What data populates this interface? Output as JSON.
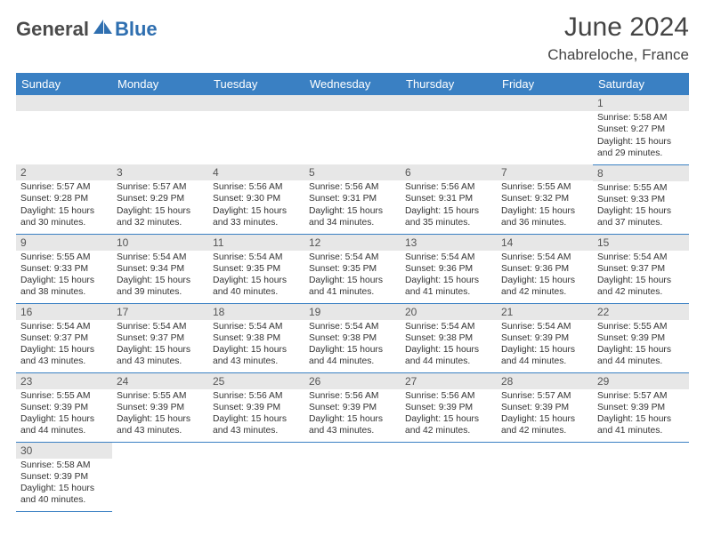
{
  "logo": {
    "general": "General",
    "blue": "Blue"
  },
  "title": "June 2024",
  "location": "Chabreloche, France",
  "colors": {
    "header_bg": "#3a80c3",
    "header_text": "#ffffff",
    "daybar_bg": "#e7e7e7",
    "border": "#3a80c3",
    "logo_blue": "#2f6fb0",
    "logo_gray": "#4a4a4a"
  },
  "weekdays": [
    "Sunday",
    "Monday",
    "Tuesday",
    "Wednesday",
    "Thursday",
    "Friday",
    "Saturday"
  ],
  "weeks": [
    [
      null,
      null,
      null,
      null,
      null,
      null,
      {
        "n": "1",
        "sr": "5:58 AM",
        "ss": "9:27 PM",
        "dl": "15 hours and 29 minutes."
      }
    ],
    [
      {
        "n": "2",
        "sr": "5:57 AM",
        "ss": "9:28 PM",
        "dl": "15 hours and 30 minutes."
      },
      {
        "n": "3",
        "sr": "5:57 AM",
        "ss": "9:29 PM",
        "dl": "15 hours and 32 minutes."
      },
      {
        "n": "4",
        "sr": "5:56 AM",
        "ss": "9:30 PM",
        "dl": "15 hours and 33 minutes."
      },
      {
        "n": "5",
        "sr": "5:56 AM",
        "ss": "9:31 PM",
        "dl": "15 hours and 34 minutes."
      },
      {
        "n": "6",
        "sr": "5:56 AM",
        "ss": "9:31 PM",
        "dl": "15 hours and 35 minutes."
      },
      {
        "n": "7",
        "sr": "5:55 AM",
        "ss": "9:32 PM",
        "dl": "15 hours and 36 minutes."
      },
      {
        "n": "8",
        "sr": "5:55 AM",
        "ss": "9:33 PM",
        "dl": "15 hours and 37 minutes."
      }
    ],
    [
      {
        "n": "9",
        "sr": "5:55 AM",
        "ss": "9:33 PM",
        "dl": "15 hours and 38 minutes."
      },
      {
        "n": "10",
        "sr": "5:54 AM",
        "ss": "9:34 PM",
        "dl": "15 hours and 39 minutes."
      },
      {
        "n": "11",
        "sr": "5:54 AM",
        "ss": "9:35 PM",
        "dl": "15 hours and 40 minutes."
      },
      {
        "n": "12",
        "sr": "5:54 AM",
        "ss": "9:35 PM",
        "dl": "15 hours and 41 minutes."
      },
      {
        "n": "13",
        "sr": "5:54 AM",
        "ss": "9:36 PM",
        "dl": "15 hours and 41 minutes."
      },
      {
        "n": "14",
        "sr": "5:54 AM",
        "ss": "9:36 PM",
        "dl": "15 hours and 42 minutes."
      },
      {
        "n": "15",
        "sr": "5:54 AM",
        "ss": "9:37 PM",
        "dl": "15 hours and 42 minutes."
      }
    ],
    [
      {
        "n": "16",
        "sr": "5:54 AM",
        "ss": "9:37 PM",
        "dl": "15 hours and 43 minutes."
      },
      {
        "n": "17",
        "sr": "5:54 AM",
        "ss": "9:37 PM",
        "dl": "15 hours and 43 minutes."
      },
      {
        "n": "18",
        "sr": "5:54 AM",
        "ss": "9:38 PM",
        "dl": "15 hours and 43 minutes."
      },
      {
        "n": "19",
        "sr": "5:54 AM",
        "ss": "9:38 PM",
        "dl": "15 hours and 44 minutes."
      },
      {
        "n": "20",
        "sr": "5:54 AM",
        "ss": "9:38 PM",
        "dl": "15 hours and 44 minutes."
      },
      {
        "n": "21",
        "sr": "5:54 AM",
        "ss": "9:39 PM",
        "dl": "15 hours and 44 minutes."
      },
      {
        "n": "22",
        "sr": "5:55 AM",
        "ss": "9:39 PM",
        "dl": "15 hours and 44 minutes."
      }
    ],
    [
      {
        "n": "23",
        "sr": "5:55 AM",
        "ss": "9:39 PM",
        "dl": "15 hours and 44 minutes."
      },
      {
        "n": "24",
        "sr": "5:55 AM",
        "ss": "9:39 PM",
        "dl": "15 hours and 43 minutes."
      },
      {
        "n": "25",
        "sr": "5:56 AM",
        "ss": "9:39 PM",
        "dl": "15 hours and 43 minutes."
      },
      {
        "n": "26",
        "sr": "5:56 AM",
        "ss": "9:39 PM",
        "dl": "15 hours and 43 minutes."
      },
      {
        "n": "27",
        "sr": "5:56 AM",
        "ss": "9:39 PM",
        "dl": "15 hours and 42 minutes."
      },
      {
        "n": "28",
        "sr": "5:57 AM",
        "ss": "9:39 PM",
        "dl": "15 hours and 42 minutes."
      },
      {
        "n": "29",
        "sr": "5:57 AM",
        "ss": "9:39 PM",
        "dl": "15 hours and 41 minutes."
      }
    ],
    [
      {
        "n": "30",
        "sr": "5:58 AM",
        "ss": "9:39 PM",
        "dl": "15 hours and 40 minutes."
      },
      null,
      null,
      null,
      null,
      null,
      null
    ]
  ],
  "labels": {
    "sunrise": "Sunrise:",
    "sunset": "Sunset:",
    "daylight": "Daylight:"
  }
}
